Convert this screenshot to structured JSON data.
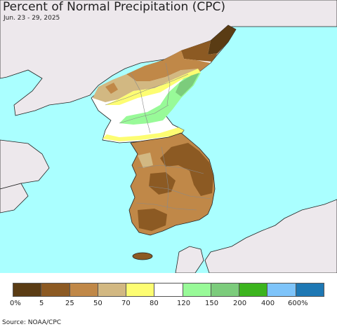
{
  "header": {
    "title": "Percent of Normal Precipitation (CPC)",
    "subtitle": "Jun. 23 - 29, 2025"
  },
  "legend": {
    "labels": [
      "0%",
      "5",
      "25",
      "50",
      "70",
      "80",
      "120",
      "150",
      "200",
      "400",
      "600%"
    ],
    "colors": [
      "#5a3c14",
      "#8c5a23",
      "#c08848",
      "#d2b882",
      "#fdfd72",
      "#ffffff",
      "#98fa98",
      "#7ccc7c",
      "#3cb41e",
      "#7ec4fa",
      "#1e78b4"
    ]
  },
  "source": {
    "text": "Source: NOAA/CPC"
  },
  "map": {
    "ocean_color": "#aaffff",
    "land_color": "#ede8ec"
  }
}
